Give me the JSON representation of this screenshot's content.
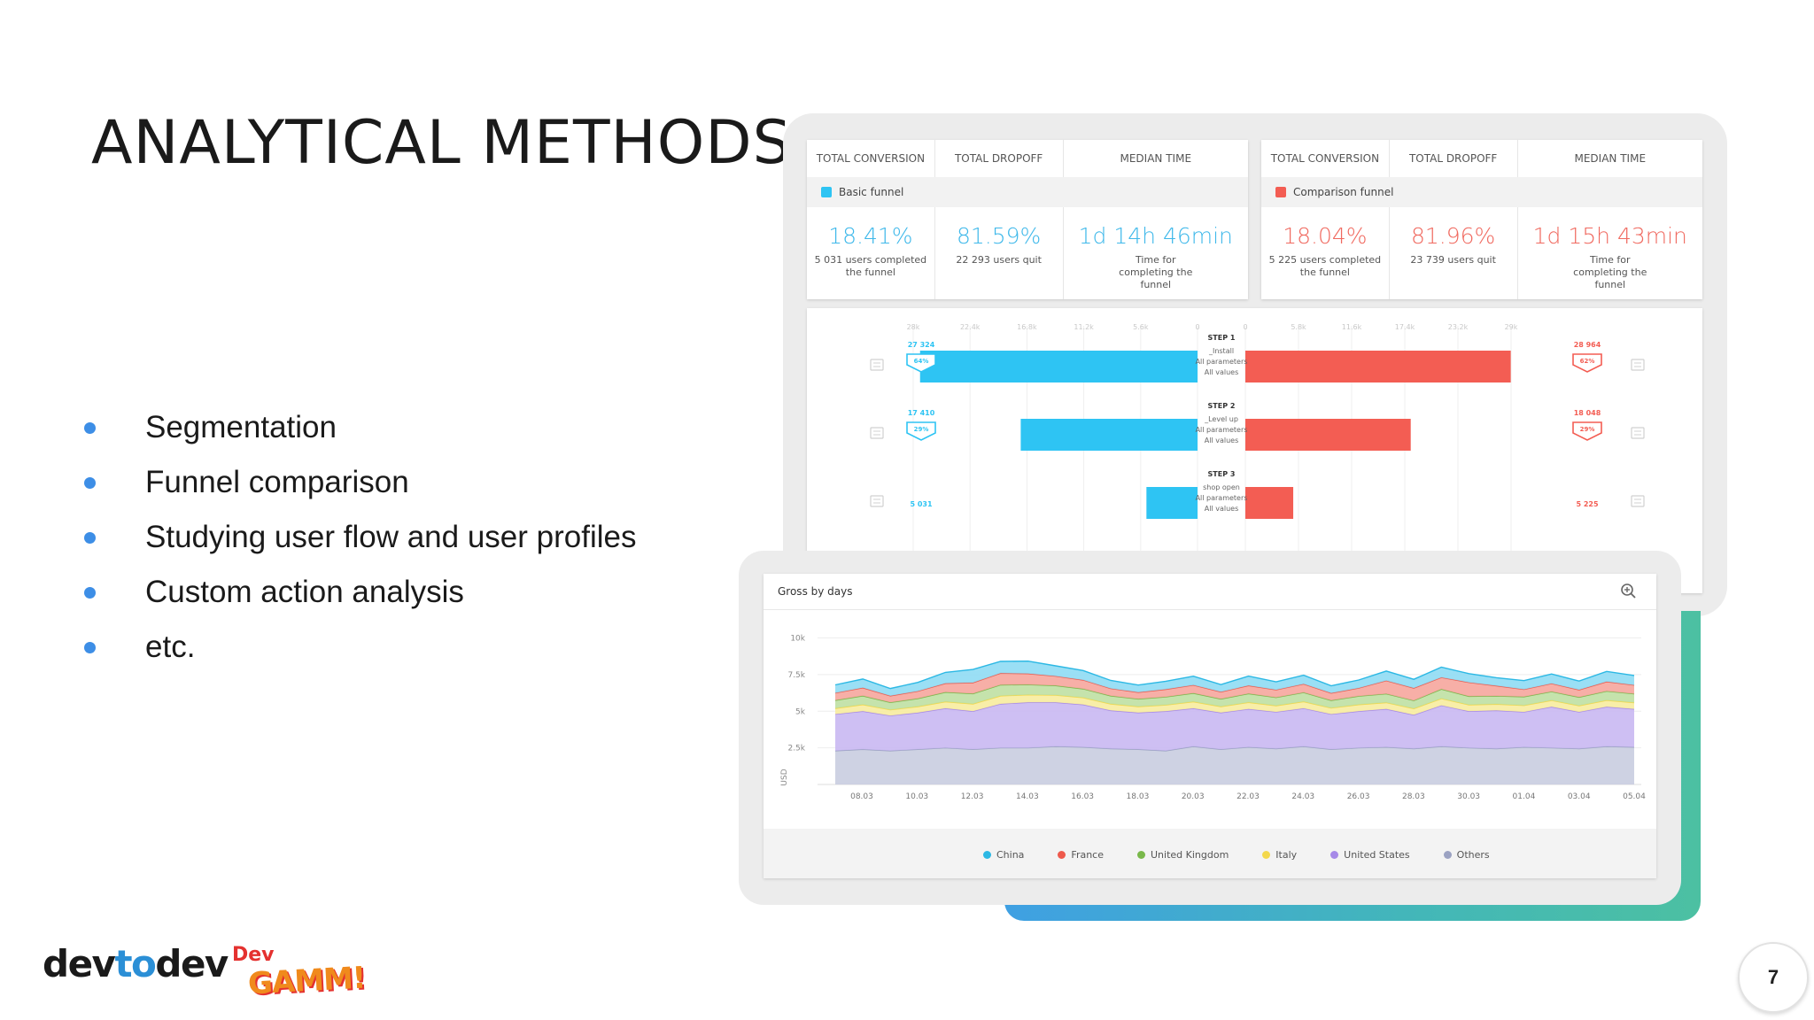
{
  "slide": {
    "title": "ANALYTICAL METHODS",
    "bullets": [
      "Segmentation",
      "Funnel comparison",
      "Studying user flow and user profiles",
      "Custom action analysis",
      "etc."
    ],
    "page_number": "7"
  },
  "logos": {
    "devtodev_a": "dev",
    "devtodev_b": "to",
    "devtodev_c": "dev",
    "devgamm_top": "Dev",
    "devgamm_bottom": "GAMM!"
  },
  "funnel_stats": {
    "headers": [
      "TOTAL CONVERSION",
      "TOTAL DROPOFF",
      "MEDIAN TIME"
    ],
    "basic": {
      "legend": "Basic funnel",
      "color": "#2ec4f3",
      "conversion": "18.41%",
      "conversion_sub": "5 031 users completed the funnel",
      "dropoff": "81.59%",
      "dropoff_sub": "22 293 users quit",
      "median": "1d 14h 46min",
      "median_sub": "Time for completing the funnel"
    },
    "comparison": {
      "legend": "Comparison funnel",
      "color": "#f35d53",
      "conversion": "18.04%",
      "conversion_sub": "5 225 users completed the funnel",
      "dropoff": "81.96%",
      "dropoff_sub": "23 739 users quit",
      "median": "1d 15h 43min",
      "median_sub": "Time for completing the funnel"
    }
  },
  "funnel_chart": {
    "left_axis": [
      "28k",
      "22.4k",
      "16.8k",
      "11.2k",
      "5.6k",
      "0"
    ],
    "right_axis": [
      "0",
      "5.8k",
      "11.6k",
      "17.4k",
      "23.2k",
      "29k"
    ],
    "steps": [
      {
        "step": "STEP 1",
        "event": "_Install",
        "params": "All parameters",
        "values": "All values",
        "left_count": "27 324",
        "left_pct": "64%",
        "left_value": 27324,
        "right_count": "28 964",
        "right_pct": "62%",
        "right_value": 28964
      },
      {
        "step": "STEP 2",
        "event": "_Level up",
        "params": "All parameters",
        "values": "All values",
        "left_count": "17 410",
        "left_pct": "29%",
        "left_value": 17410,
        "right_count": "18 048",
        "right_pct": "29%",
        "right_value": 18048
      },
      {
        "step": "STEP 3",
        "event": "shop open",
        "params": "All parameters",
        "values": "All values",
        "left_count": "5 031",
        "left_pct": "",
        "left_value": 5031,
        "right_count": "5 225",
        "right_pct": "",
        "right_value": 5225
      }
    ],
    "left_max": 28000,
    "right_max": 29000,
    "left_color": "#2ec4f3",
    "right_color": "#f35d53"
  },
  "gross_chart": {
    "title": "Gross by days",
    "ylabel": "USD",
    "zoom_icon": "zoom-in-icon",
    "legend": [
      {
        "name": "China",
        "color": "#2cb8e4"
      },
      {
        "name": "France",
        "color": "#ee5a4c"
      },
      {
        "name": "United Kingdom",
        "color": "#79b84a"
      },
      {
        "name": "Italy",
        "color": "#f3d84c"
      },
      {
        "name": "United States",
        "color": "#a689e8"
      },
      {
        "name": "Others",
        "color": "#9ba2c2"
      }
    ]
  },
  "chart_data": {
    "type": "area",
    "title": "Gross by days",
    "ylabel": "USD",
    "ylim": [
      0,
      11000
    ],
    "y_ticks": [
      2500,
      5000,
      7500,
      10000
    ],
    "y_tick_labels": [
      "2.5k",
      "5k",
      "7.5k",
      "10k"
    ],
    "x_tick_labels": [
      "08.03",
      "10.03",
      "12.03",
      "14.03",
      "16.03",
      "18.03",
      "20.03",
      "22.03",
      "24.03",
      "26.03",
      "28.03",
      "30.03",
      "01.04",
      "03.04",
      "05.04"
    ],
    "x_count": 30,
    "stacked": true,
    "series": [
      {
        "name": "Others",
        "color": "#c9cde0",
        "values": [
          2300,
          2400,
          2300,
          2400,
          2500,
          2400,
          2500,
          2500,
          2600,
          2550,
          2450,
          2400,
          2300,
          2600,
          2400,
          2550,
          2450,
          2600,
          2400,
          2500,
          2550,
          2450,
          2600,
          2500,
          2450,
          2550,
          2500,
          2450,
          2600,
          2550
        ]
      },
      {
        "name": "United States",
        "color": "#c9b8f2",
        "values": [
          2500,
          2600,
          2400,
          2500,
          2700,
          2600,
          3000,
          3100,
          3000,
          2900,
          2600,
          2500,
          2700,
          2600,
          2500,
          2600,
          2500,
          2600,
          2400,
          2500,
          2600,
          2300,
          2800,
          2500,
          2600,
          2400,
          2800,
          2500,
          2700,
          2600
        ]
      },
      {
        "name": "Italy",
        "color": "#f7ec9e",
        "values": [
          400,
          450,
          400,
          420,
          450,
          500,
          550,
          520,
          500,
          480,
          450,
          420,
          430,
          450,
          420,
          450,
          430,
          460,
          420,
          450,
          440,
          430,
          460,
          440,
          430,
          450,
          440,
          430,
          450,
          440
        ]
      },
      {
        "name": "United Kingdom",
        "color": "#bfe0a3",
        "values": [
          550,
          600,
          500,
          550,
          650,
          700,
          750,
          700,
          650,
          600,
          550,
          520,
          550,
          580,
          520,
          600,
          560,
          620,
          520,
          580,
          600,
          550,
          650,
          580,
          560,
          590,
          600,
          580,
          620,
          600
        ]
      },
      {
        "name": "France",
        "color": "#f6a69d",
        "values": [
          500,
          550,
          450,
          500,
          600,
          750,
          800,
          750,
          650,
          600,
          500,
          450,
          520,
          560,
          480,
          550,
          520,
          580,
          500,
          550,
          900,
          850,
          800,
          950,
          700,
          500,
          550,
          500,
          650,
          600
        ]
      },
      {
        "name": "China",
        "color": "#8fdbf4",
        "values": [
          550,
          600,
          500,
          600,
          750,
          900,
          800,
          850,
          700,
          650,
          550,
          500,
          550,
          600,
          500,
          650,
          550,
          600,
          500,
          550,
          650,
          600,
          700,
          600,
          550,
          600,
          650,
          600,
          700,
          650
        ]
      }
    ]
  }
}
